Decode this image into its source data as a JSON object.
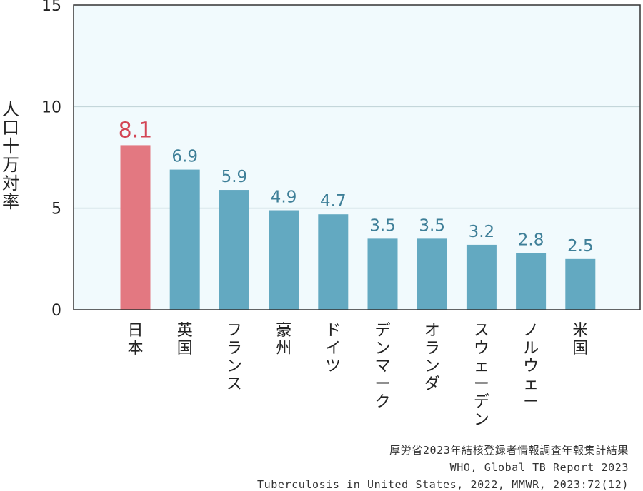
{
  "chart_data": {
    "type": "bar",
    "ylabel": "人口十万対率",
    "ylim": [
      0,
      15
    ],
    "yticks": [
      0,
      5,
      10,
      15
    ],
    "grid": true,
    "categories": [
      "日本",
      "英国",
      "フランス",
      "豪州",
      "ドイツ",
      "デンマーク",
      "オランダ",
      "スウェーデン",
      "ノルウェー",
      "米国"
    ],
    "values": [
      8.1,
      6.9,
      5.9,
      4.9,
      4.7,
      3.5,
      3.5,
      3.2,
      2.8,
      2.5
    ],
    "value_labels": [
      "8.1",
      "6.9",
      "5.9",
      "4.9",
      "4.7",
      "3.5",
      "3.5",
      "3.2",
      "2.8",
      "2.5"
    ],
    "highlight_index": 0
  },
  "colors": {
    "plot_bg": "#f1fafd",
    "bar": "#63a9c1",
    "bar_highlight": "#e37881",
    "label": "#3e7f98",
    "label_highlight": "#d34555",
    "grid": "#c4d6da",
    "axis": "#333333"
  },
  "sources": [
    "厚労省2023年結核登録者情報調査年報集計結果",
    "WHO, Global TB Report 2023",
    "Tuberculosis in United States, 2022, MMWR, 2023:72(12)"
  ]
}
